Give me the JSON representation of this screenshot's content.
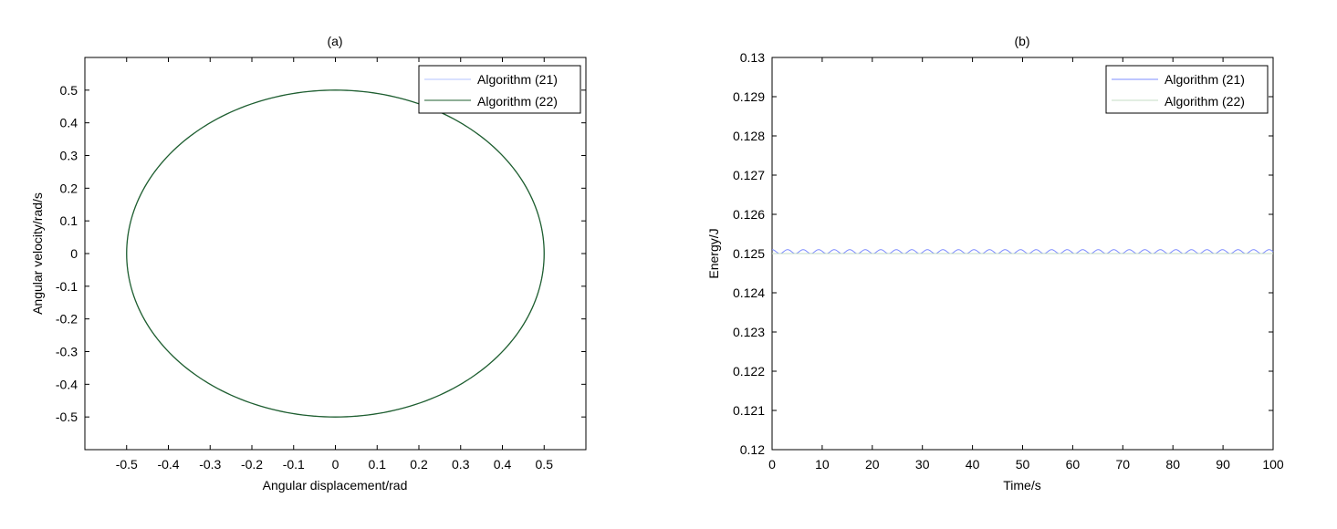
{
  "chart_data": [
    {
      "type": "line",
      "title": "(a)",
      "xlabel": "Angular displacement/rad",
      "ylabel": "Angular velocity/rad/s",
      "xlim": [
        -0.6,
        0.6
      ],
      "ylim": [
        -0.6,
        0.6
      ],
      "xticks": [
        "-0.5",
        "-0.4",
        "-0.3",
        "-0.2",
        "-0.1",
        "0",
        "0.1",
        "0.2",
        "0.3",
        "0.4",
        "0.5"
      ],
      "xtick_values": [
        -0.5,
        -0.4,
        -0.3,
        -0.2,
        -0.1,
        0,
        0.1,
        0.2,
        0.3,
        0.4,
        0.5
      ],
      "yticks": [
        "0.5",
        "0.4",
        "0.3",
        "0.2",
        "0.1",
        "0",
        "-0.1",
        "-0.2",
        "-0.3",
        "-0.4",
        "-0.5"
      ],
      "ytick_values": [
        0.5,
        0.4,
        0.3,
        0.2,
        0.1,
        0,
        -0.1,
        -0.2,
        -0.3,
        -0.4,
        -0.5
      ],
      "grid": false,
      "legend_position": "top-right",
      "series": [
        {
          "name": "Algorithm (21)",
          "color": "#b3c3ff",
          "x": [
            0.5,
            0.433,
            0.25,
            0,
            -0.25,
            -0.433,
            -0.5,
            -0.433,
            -0.25,
            0,
            0.25,
            0.433,
            0.5
          ],
          "y": [
            0,
            0.25,
            0.433,
            0.5,
            0.433,
            0.25,
            0,
            -0.25,
            -0.433,
            -0.5,
            -0.433,
            -0.25,
            0
          ]
        },
        {
          "name": "Algorithm (22)",
          "color": "#1f5f2f",
          "x": [
            0.5,
            0.433,
            0.25,
            0,
            -0.25,
            -0.433,
            -0.5,
            -0.433,
            -0.25,
            0,
            0.25,
            0.433,
            0.5
          ],
          "y": [
            0,
            0.25,
            0.433,
            0.5,
            0.433,
            0.25,
            0,
            -0.25,
            -0.433,
            -0.5,
            -0.433,
            -0.25,
            0
          ]
        }
      ]
    },
    {
      "type": "line",
      "title": "(b)",
      "xlabel": "Time/s",
      "ylabel": "Energy/J",
      "xlim": [
        0,
        100
      ],
      "ylim": [
        0.12,
        0.13
      ],
      "xticks": [
        "0",
        "10",
        "20",
        "30",
        "40",
        "50",
        "60",
        "70",
        "80",
        "90",
        "100"
      ],
      "xtick_values": [
        0,
        10,
        20,
        30,
        40,
        50,
        60,
        70,
        80,
        90,
        100
      ],
      "yticks": [
        "0.13",
        "0.129",
        "0.128",
        "0.127",
        "0.126",
        "0.125",
        "0.124",
        "0.123",
        "0.122",
        "0.121",
        "0.12"
      ],
      "ytick_values": [
        0.13,
        0.129,
        0.128,
        0.127,
        0.126,
        0.125,
        0.124,
        0.123,
        0.122,
        0.121,
        0.12
      ],
      "grid": false,
      "legend_position": "top-right",
      "series": [
        {
          "name": "Algorithm (21)",
          "color": "#7d8cff",
          "x": [
            0,
            100
          ],
          "y": [
            0.12505,
            0.12505
          ],
          "oscillation_amplitude": 0.0001,
          "oscillation_period": 3.1
        },
        {
          "name": "Algorithm (22)",
          "color": "#c6dcc6",
          "x": [
            0,
            100
          ],
          "y": [
            0.125,
            0.125
          ]
        }
      ]
    }
  ]
}
